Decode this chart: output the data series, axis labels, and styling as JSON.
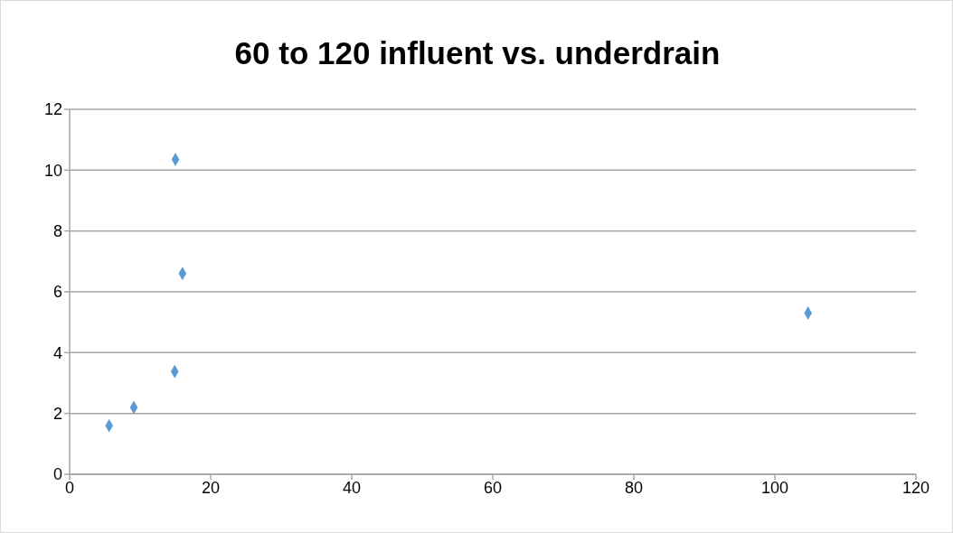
{
  "chart_data": {
    "type": "scatter",
    "title": "60 to 120 influent vs. underdrain",
    "x": [
      5.6,
      9.1,
      14.9,
      16.0,
      15.0,
      104.7
    ],
    "values": [
      1.6,
      2.2,
      3.38,
      6.6,
      10.35,
      5.3
    ],
    "color": "#5b9bd5",
    "marker": "diamond",
    "xlim": [
      0,
      120
    ],
    "xticks": [
      0,
      20,
      40,
      60,
      80,
      100,
      120
    ],
    "ylim": [
      0,
      12
    ],
    "yticks": [
      0,
      2,
      4,
      6,
      8,
      10,
      12
    ],
    "grid": "y"
  }
}
